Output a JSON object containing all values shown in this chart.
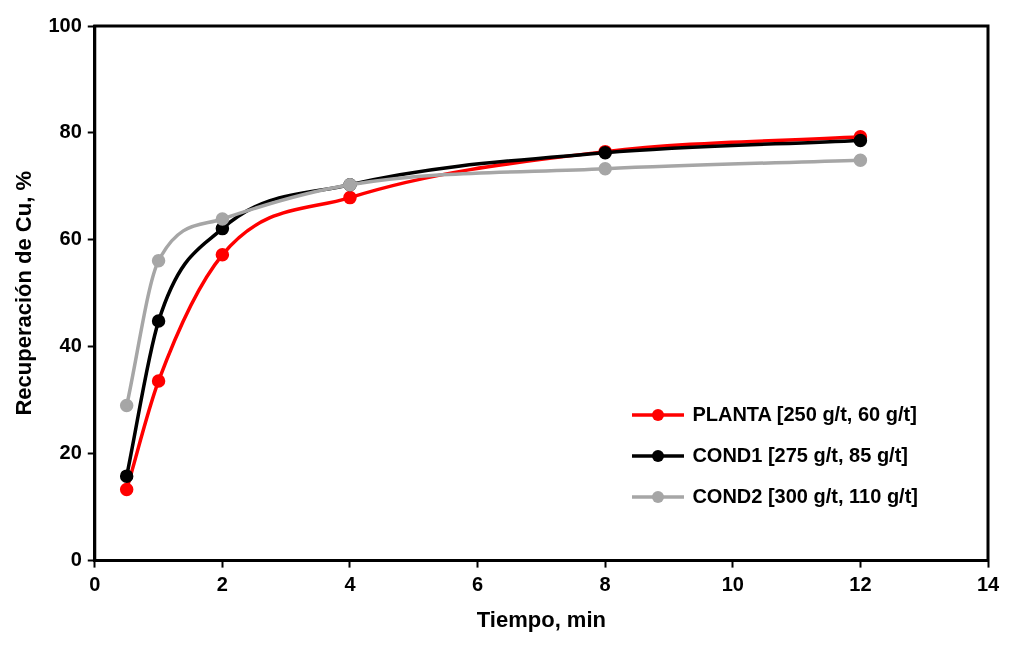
{
  "chart_data": {
    "type": "line",
    "xlabel": "Tiempo, min",
    "ylabel": "Recuperación de Cu, %",
    "x": [
      0.5,
      1,
      2,
      4,
      8,
      12
    ],
    "series": [
      {
        "name": "PLANTA [250 g/t, 60 g/t]",
        "color": "#ff0000",
        "values": [
          13.3,
          33.6,
          57.2,
          67.9,
          76.5,
          79.3
        ]
      },
      {
        "name": "COND1 [275 g/t, 85 g/t]",
        "color": "#000000",
        "values": [
          15.8,
          44.8,
          62.1,
          70.3,
          76.3,
          78.6
        ]
      },
      {
        "name": "COND2 [300 g/t, 110 g/t]",
        "color": "#a6a6a6",
        "values": [
          29.0,
          56.1,
          63.9,
          70.3,
          73.3,
          74.9
        ]
      }
    ],
    "xlim": [
      0,
      14
    ],
    "xticks": [
      0,
      2,
      4,
      6,
      8,
      10,
      12,
      14
    ],
    "ylim": [
      0,
      100
    ],
    "yticks": [
      0,
      20,
      40,
      60,
      80,
      100
    ],
    "grid": false,
    "legend": "bottom right",
    "marker": "circle",
    "line_style": "solid"
  }
}
